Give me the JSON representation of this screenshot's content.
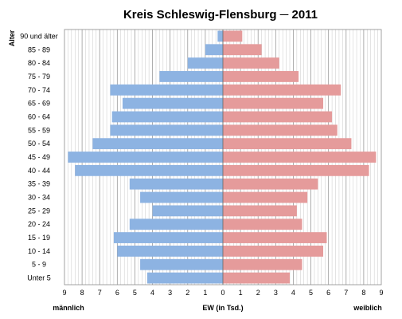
{
  "chart_data": {
    "type": "bar",
    "title": "Kreis Schleswig-Flensburg ─ 2011",
    "ylabel": "Alter",
    "xlabel": "EW (in Tsd.)",
    "left_label": "männlich",
    "right_label": "weiblich",
    "categories": [
      "90 und älter",
      "85 - 89",
      "80 - 84",
      "75 - 79",
      "70 - 74",
      "65 - 69",
      "60 - 64",
      "55 - 59",
      "50 - 54",
      "45 - 49",
      "40 - 44",
      "35 - 39",
      "30 - 34",
      "25 - 29",
      "20 - 24",
      "15 - 19",
      "10 - 14",
      "5 - 9",
      "Unter 5"
    ],
    "series": [
      {
        "name": "männlich",
        "color": "#8db3e2",
        "values": [
          0.3,
          1.0,
          2.0,
          3.6,
          6.4,
          5.7,
          6.3,
          6.4,
          7.4,
          8.8,
          8.4,
          5.3,
          4.7,
          4.0,
          5.3,
          6.2,
          6.0,
          4.7,
          4.3
        ]
      },
      {
        "name": "weiblich",
        "color": "#e59b9b",
        "values": [
          1.1,
          2.2,
          3.2,
          4.3,
          6.7,
          5.7,
          6.2,
          6.5,
          7.3,
          8.7,
          8.3,
          5.4,
          4.8,
          4.2,
          4.5,
          5.9,
          5.7,
          4.5,
          3.8
        ]
      }
    ],
    "xlim": [
      -9,
      9
    ],
    "xticks": [
      "9",
      "8",
      "7",
      "6",
      "5",
      "4",
      "3",
      "2",
      "1",
      "0",
      "1",
      "2",
      "3",
      "4",
      "5",
      "6",
      "7",
      "8",
      "9"
    ],
    "grid": true,
    "minor_step": 0.2
  }
}
